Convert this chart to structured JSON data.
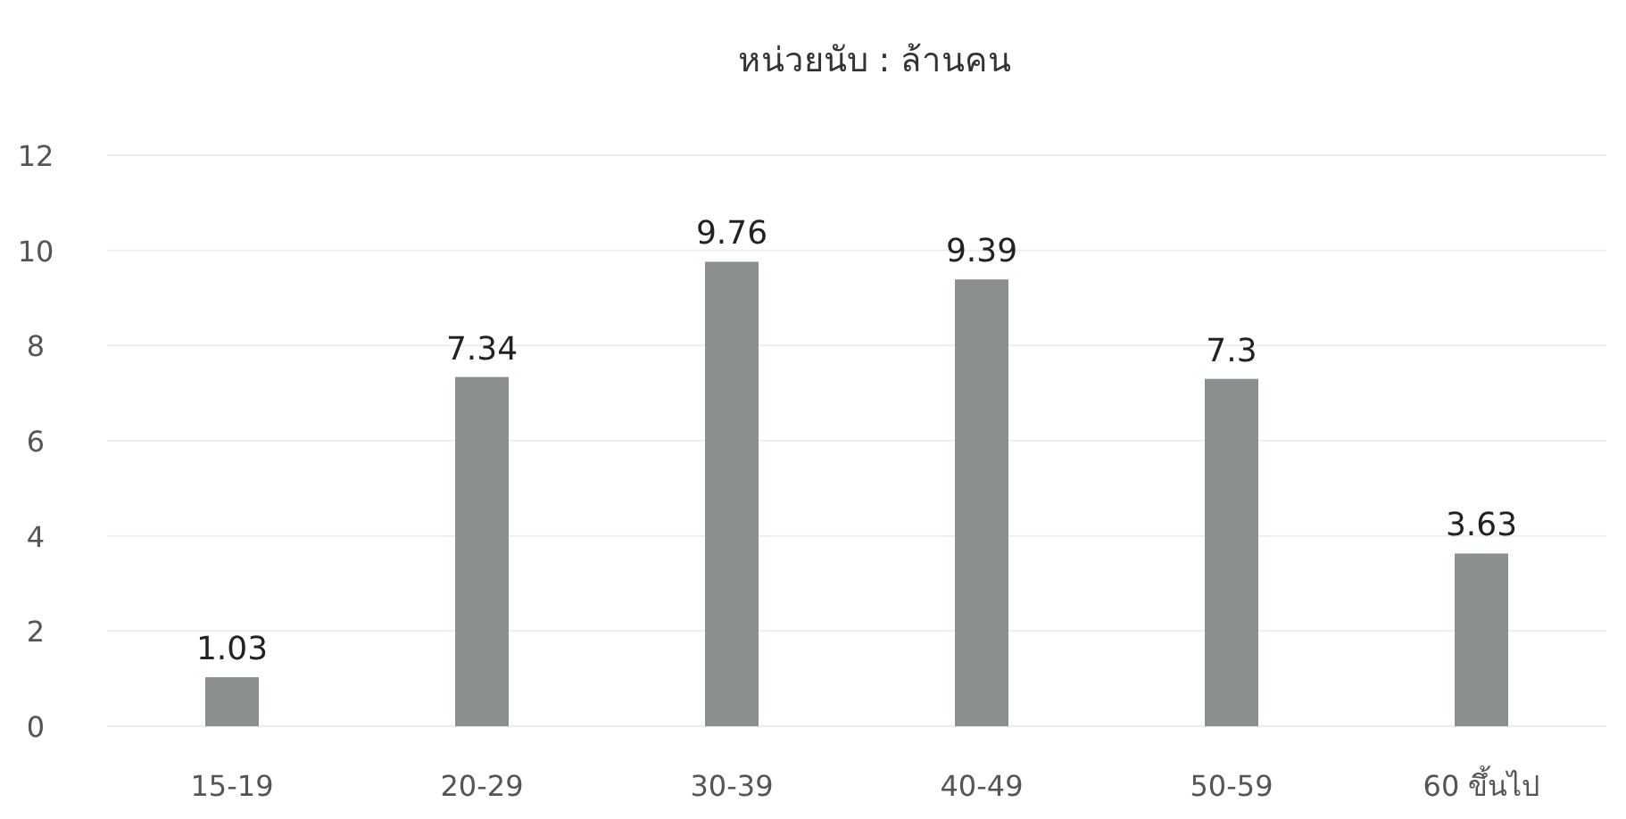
{
  "chart_data": {
    "type": "bar",
    "title": "หน่วยนับ : ล้านคน",
    "categories": [
      "15-19",
      "20-29",
      "30-39",
      "40-49",
      "50-59",
      "60 ขึ้นไป"
    ],
    "values": [
      1.03,
      7.34,
      9.76,
      9.39,
      7.3,
      3.63
    ],
    "color": "#8a908d",
    "ylim": [
      0,
      12
    ],
    "yticks": [
      0,
      2,
      4,
      6,
      8,
      10,
      12
    ],
    "grid": "y",
    "data_labels": true
  }
}
